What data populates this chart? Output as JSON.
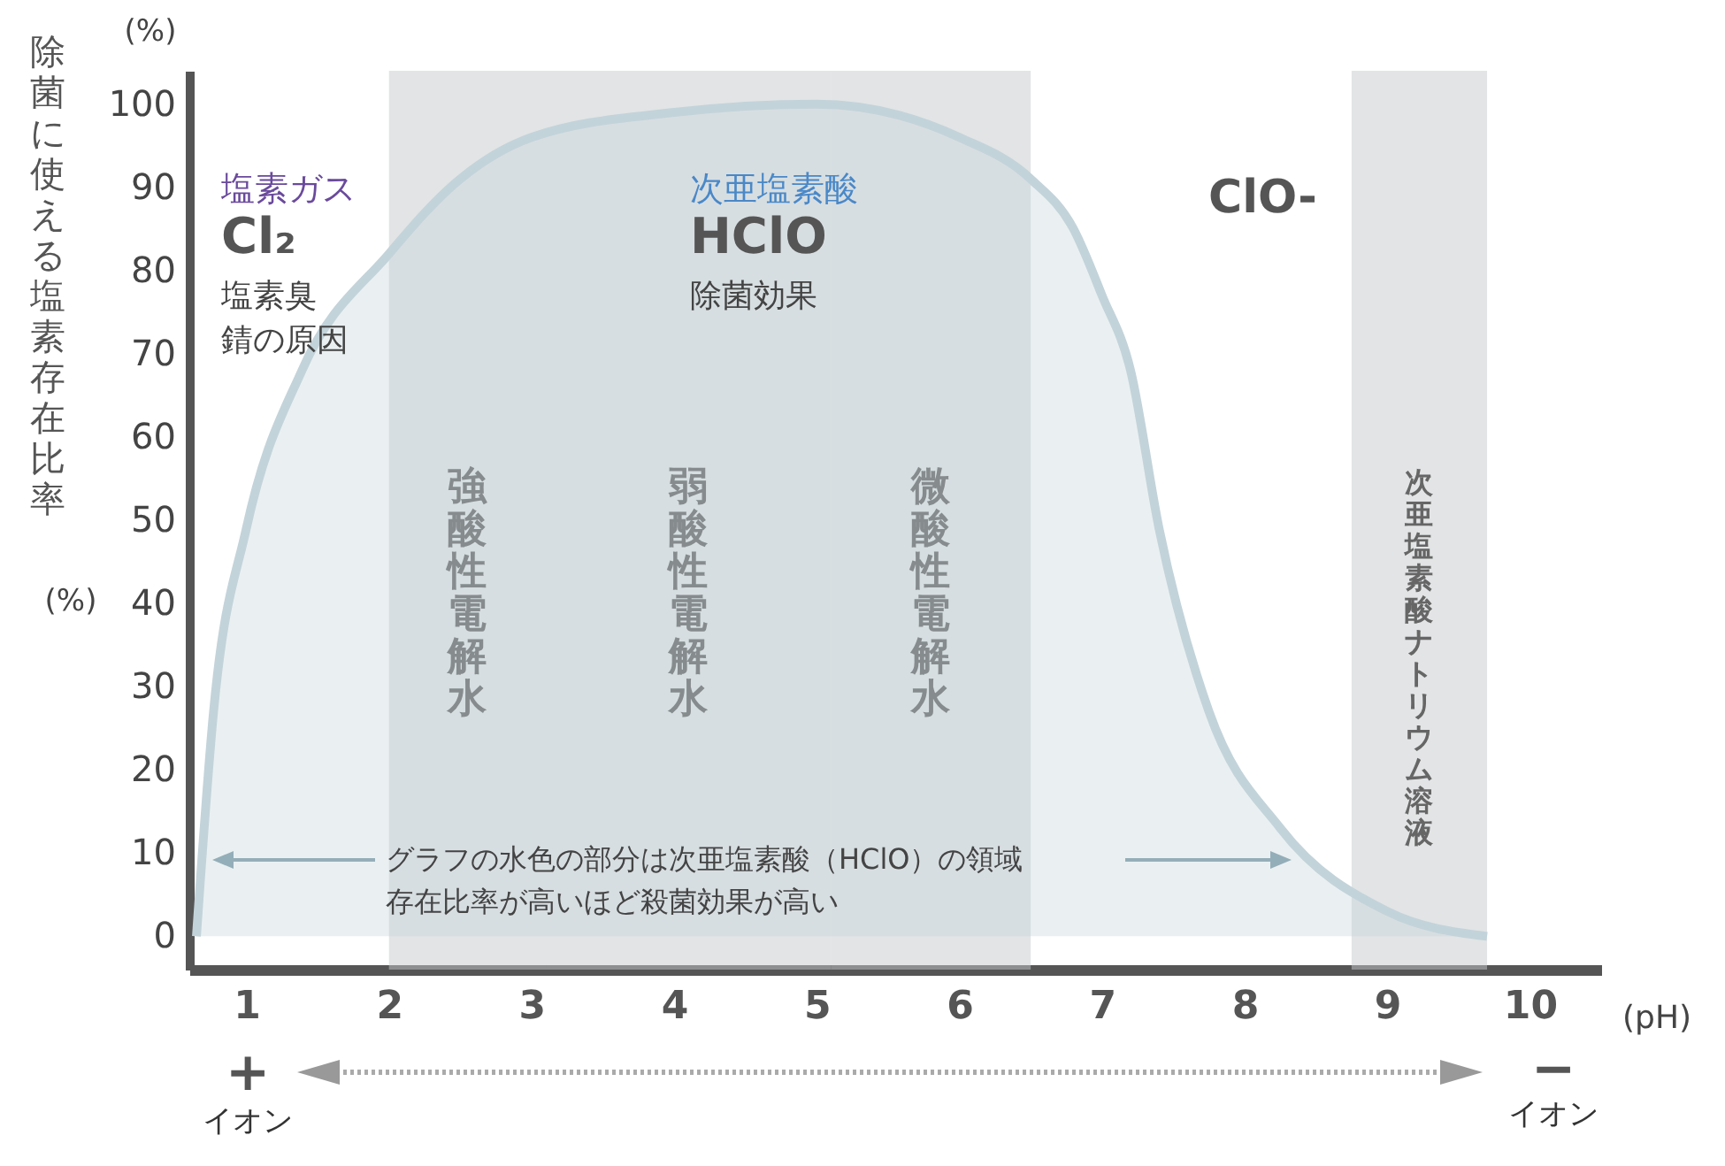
{
  "chart_data": {
    "type": "area",
    "ylabel": "除菌に使える塩素存在比率",
    "xlabel": "(pH)",
    "x": [
      0.65,
      0.77,
      1.0,
      1.39,
      2,
      2.5,
      3,
      4,
      5,
      6,
      6.5,
      6.8,
      7,
      7.2,
      7.4,
      7.75,
      8.25,
      9,
      9.7
    ],
    "series": [
      {
        "color": "#c3d3da",
        "values": [
          0,
          27,
          49,
          68,
          82,
          91,
          96,
          99,
          100,
          96,
          91,
          85,
          77,
          68,
          49,
          27,
          13,
          3,
          0
        ]
      }
    ],
    "xlim": [
      0.6,
      10.5
    ],
    "xticks": [
      1,
      2,
      3,
      4,
      5,
      6,
      7,
      8,
      9,
      10
    ],
    "ylim": [
      -4,
      104
    ],
    "yticks": [
      0,
      10,
      20,
      30,
      40,
      50,
      60,
      70,
      80,
      90,
      100
    ],
    "bands": [
      {
        "axis": "x",
        "from": 2,
        "to": 3.1,
        "label": "強酸性電解水",
        "color": "#c5c9cc"
      },
      {
        "axis": "x",
        "from": 3.1,
        "to": 5.1,
        "label": "弱酸性電解水",
        "color": "#c5c9cc"
      },
      {
        "axis": "x",
        "from": 5.1,
        "to": 6.5,
        "label": "微酸性電解水",
        "color": "#c5c9cc"
      },
      {
        "axis": "x",
        "from": 8.75,
        "to": 9.7,
        "label": "次亜塩素酸ナトリウム溶液",
        "color": "#c5c9cc"
      }
    ],
    "annotations": [
      "(%)",
      "(%)",
      "塩素ガス",
      "Cl₂",
      "塩素臭",
      "錆の原因",
      "次亜塩素酸",
      "HClO",
      "除菌効果",
      "ClO-",
      "グラフの水色の部分は次亜塩素酸（HClO）の領域",
      "存在比率が高いほど殺菌効果が高い",
      "+",
      "イオン",
      "−",
      "イオン"
    ]
  }
}
